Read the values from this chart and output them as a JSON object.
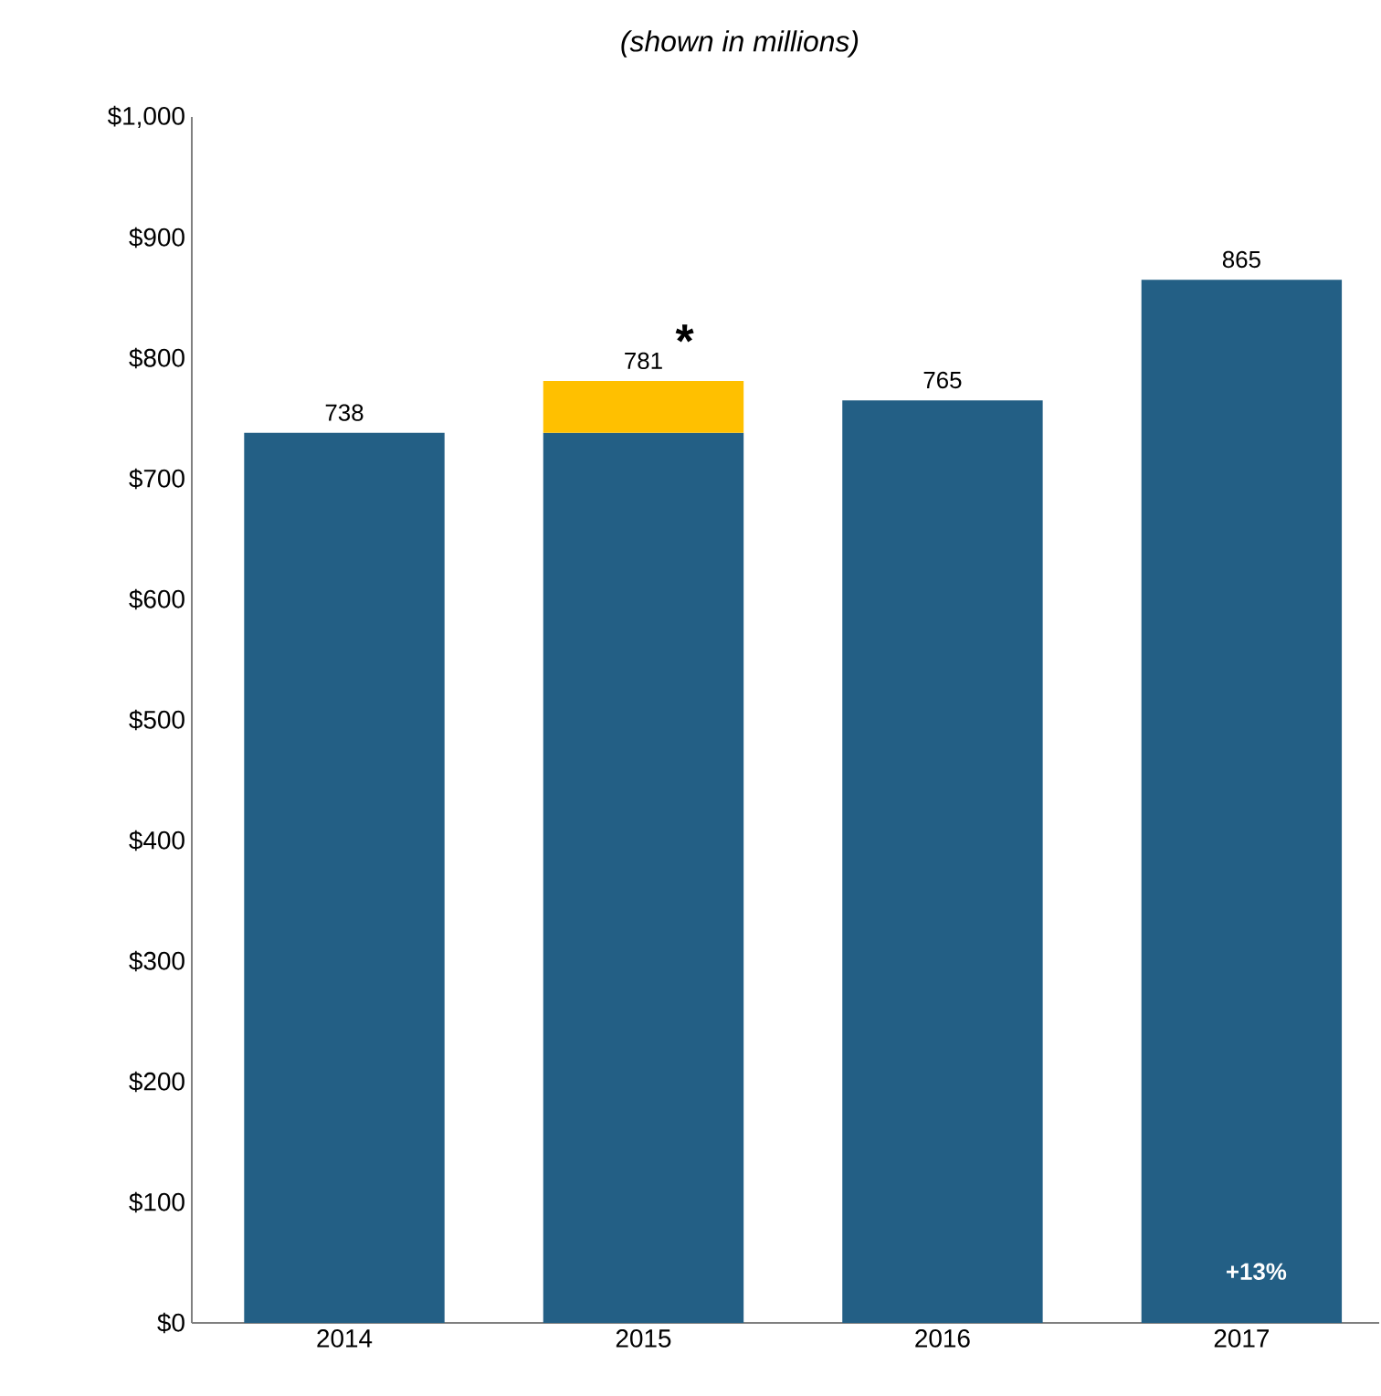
{
  "chart_data": {
    "type": "bar",
    "subtitle": "(shown in millions)",
    "categories": [
      "2014",
      "2015",
      "2016",
      "2017"
    ],
    "series": [
      {
        "color": "#235f85",
        "values": [
          738,
          738,
          765,
          865
        ]
      },
      {
        "color": "#ffc000",
        "values": [
          null,
          43,
          null,
          null
        ]
      }
    ],
    "stacked": true,
    "totals": [
      "738",
      "781",
      "765",
      "865"
    ],
    "ylim": [
      0,
      1000
    ],
    "yticks": [
      {
        "value": 0,
        "label": "$0"
      },
      {
        "value": 100,
        "label": "$100"
      },
      {
        "value": 200,
        "label": "$200"
      },
      {
        "value": 300,
        "label": "$300"
      },
      {
        "value": 400,
        "label": "$400"
      },
      {
        "value": 500,
        "label": "$500"
      },
      {
        "value": 600,
        "label": "$600"
      },
      {
        "value": 700,
        "label": "$700"
      },
      {
        "value": 800,
        "label": "$800"
      },
      {
        "value": 900,
        "label": "$900"
      },
      {
        "value": 1000,
        "label": "$1,000"
      }
    ],
    "annotations": [
      {
        "text": "*",
        "x": "2015",
        "y": 781
      },
      "+13%"
    ]
  }
}
